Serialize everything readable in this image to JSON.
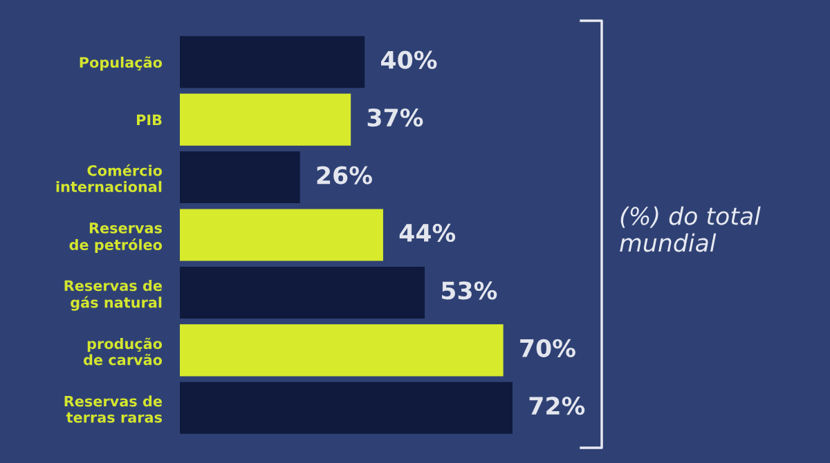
{
  "chart_data": {
    "type": "bar",
    "orientation": "horizontal",
    "categories": [
      "População",
      "PIB",
      "Comércio\ninternacional",
      "Reservas\nde petróleo",
      "Reservas de\ngás natural",
      "produção\nde carvão",
      "Reservas de\nterras raras"
    ],
    "values": [
      40,
      37,
      26,
      44,
      53,
      70,
      72
    ],
    "colors": [
      "#0f1a3d",
      "#d8ea2c",
      "#0f1a3d",
      "#d8ea2c",
      "#0f1a3d",
      "#d8ea2c",
      "#0f1a3d"
    ],
    "value_labels": [
      "40%",
      "37%",
      "26%",
      "44%",
      "53%",
      "70%",
      "72%"
    ],
    "annotations": [
      "(%) do total mundial"
    ],
    "grid": false,
    "legend": false
  }
}
